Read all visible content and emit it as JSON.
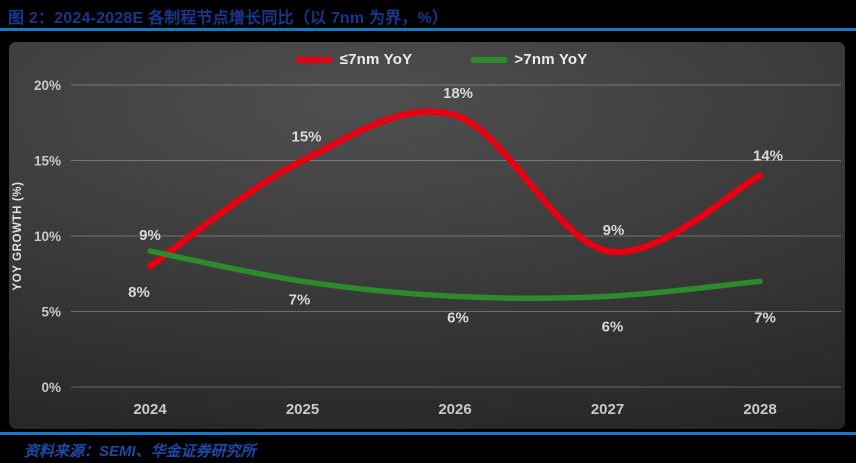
{
  "header": {
    "title": "图 2：2024-2028E 各制程节点增长同比（以 7nm 为界，%）"
  },
  "footer": {
    "source": "资料来源：SEMI、华金证券研究所"
  },
  "colors": {
    "accent_blue": "#1778c8",
    "title_blue": "#16388e",
    "source_blue": "#1a4aa8",
    "red_series": "#e60012",
    "green_series": "#2e8b2d",
    "data_label_gray": "#d9d9d9",
    "axis_label_gray": "#c9c9c9",
    "gridline": "rgba(255,255,255,0.28)"
  },
  "chart_data": {
    "type": "line",
    "categories": [
      "2024",
      "2025",
      "2026",
      "2027",
      "2028"
    ],
    "series": [
      {
        "name": "≤7nm YoY",
        "color_key": "red_series",
        "values": [
          8,
          15,
          18,
          9,
          14
        ]
      },
      {
        "name": ">7nm YoY",
        "color_key": "green_series",
        "values": [
          9,
          7,
          6,
          6,
          7
        ]
      }
    ],
    "ylabel": "YOY GROWTH (%)",
    "ylim": [
      0,
      20
    ],
    "yticks": [
      0,
      5,
      10,
      15,
      20
    ],
    "ytick_labels": [
      "0%",
      "5%",
      "10%",
      "15%",
      "20%"
    ],
    "grid": true,
    "legend_position": "top",
    "data_label_format": "{v}%"
  }
}
